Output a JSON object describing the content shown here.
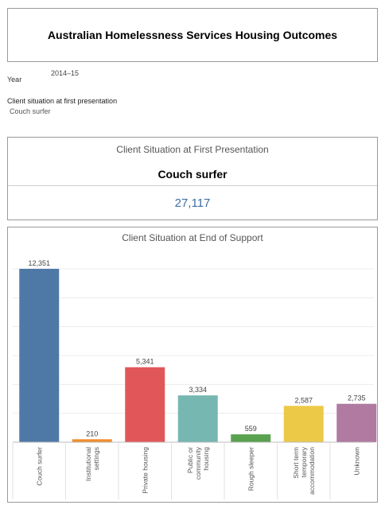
{
  "header": {
    "title": "Australian Homelessness Services Housing Outcomes"
  },
  "filters": {
    "year_label": "Year",
    "year_value": "2014–15",
    "situation_label": "Client situation at first presentation",
    "situation_value": "Couch surfer"
  },
  "kpi": {
    "heading": "Client Situation at First Presentation",
    "category": "Couch surfer",
    "value": "27,117"
  },
  "chart_data": {
    "type": "bar",
    "title": "Client Situation at End of Support",
    "xlabel": "",
    "ylabel": "",
    "categories": [
      [
        "Couch surfer"
      ],
      [
        "Institutional",
        "settings"
      ],
      [
        "Private housing"
      ],
      [
        "Public or",
        "community",
        "housing"
      ],
      [
        "Rough sleeper"
      ],
      [
        "Short term",
        "temporary",
        "accommodation"
      ],
      [
        "Unknown"
      ]
    ],
    "values": [
      12351,
      210,
      5341,
      3334,
      559,
      2587,
      2735
    ],
    "labels": [
      "12,351",
      "210",
      "5,341",
      "3,334",
      "559",
      "2,587",
      "2,735"
    ],
    "colors": [
      "#4e79a7",
      "#f28e2b",
      "#e15759",
      "#76b7b2",
      "#59a14f",
      "#edc948",
      "#b07aa1"
    ],
    "ylim": [
      0,
      12351
    ],
    "grid": true,
    "legend": "none"
  }
}
